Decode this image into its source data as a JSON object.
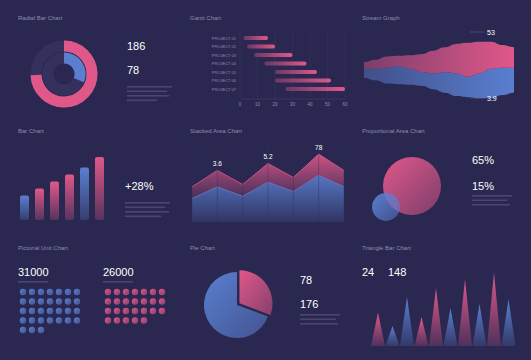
{
  "chart_data": [
    {
      "type": "radial_bar",
      "title": "Radial Bar Chart",
      "values": [
        186,
        78
      ],
      "colors": [
        "#e0588a",
        "#5a7fd0"
      ],
      "ylim": [
        0,
        250
      ],
      "data_labels": true,
      "tick_labels": false
    },
    {
      "type": "gantt",
      "title": "Gantt Chart",
      "orientation": "horizontal",
      "categories": [
        "PROJECT 01",
        "PROJECT 02",
        "PROJECT 03",
        "PROJECT 04",
        "PROJECT 05",
        "PROJECT 06",
        "PROJECT 07"
      ],
      "start": [
        2,
        4,
        8,
        14,
        20,
        20,
        26
      ],
      "end": [
        16,
        20,
        30,
        38,
        44,
        52,
        60
      ],
      "color": "#e0588a",
      "xlim": [
        0,
        60
      ],
      "xticks": [
        0,
        10,
        20,
        30,
        40,
        50,
        60
      ],
      "grid": true
    },
    {
      "type": "stream",
      "title": "Stream Graph",
      "series": [
        {
          "color": "#5a7fd0",
          "values": [
            8,
            10,
            14,
            16,
            14,
            12,
            14,
            18,
            20,
            18,
            22,
            26,
            24,
            22
          ]
        },
        {
          "color": "#e0588a",
          "values": [
            6,
            8,
            10,
            9,
            12,
            16,
            20,
            22,
            26,
            30,
            28,
            24,
            20,
            18
          ]
        }
      ],
      "ylim": [
        -30,
        30
      ],
      "annotations": [
        "53",
        "3.9"
      ],
      "tick_labels": false
    },
    {
      "type": "bar",
      "title": "Bar Chart",
      "categories": [
        null,
        null,
        null,
        null,
        null,
        null
      ],
      "values": [
        35,
        45,
        55,
        65,
        75,
        90
      ],
      "colors": [
        "#5a7fd0",
        "#e0588a",
        "#e0588a",
        "#e0588a",
        "#5a7fd0",
        "#e0588a"
      ],
      "ylim": [
        0,
        100
      ],
      "tick_labels": false,
      "annotations": [
        "+28%"
      ]
    },
    {
      "type": "area",
      "title": "Stacked Area Chart",
      "stacked": true,
      "categories": [
        null,
        null,
        null,
        null,
        null,
        null,
        null
      ],
      "series": [
        {
          "color": "#5a7fd0",
          "values": [
            20,
            30,
            22,
            34,
            26,
            40,
            30
          ]
        },
        {
          "color": "#e0588a",
          "values": [
            10,
            14,
            10,
            16,
            12,
            18,
            14
          ]
        }
      ],
      "ylim": [
        0,
        70
      ],
      "tick_labels": false,
      "annotations": [
        "3.6",
        "5.2",
        "78"
      ]
    },
    {
      "type": "proportional_area",
      "title": "Proportional Area Chart",
      "values": [
        65,
        15
      ],
      "value_labels": [
        "65%",
        "15%"
      ],
      "colors": [
        "#e0588a",
        "#5a7fd0"
      ],
      "ylim": [
        0,
        100
      ],
      "data_labels": true
    },
    {
      "type": "pictorial_unit",
      "title": "Pictorial Unit Chart",
      "values": [
        31000,
        26000
      ],
      "unit": 1000,
      "colors": [
        "#5a7fd0",
        "#e0588a"
      ],
      "data_labels": true
    },
    {
      "type": "pie",
      "title": "Pie Chart",
      "values": [
        78,
        176
      ],
      "colors": [
        "#e0588a",
        "#5a7fd0"
      ],
      "data_labels": true
    },
    {
      "type": "triangle_bar",
      "title": "Triangle Bar Chart",
      "categories": [
        null,
        null,
        null,
        null,
        null,
        null,
        null,
        null,
        null,
        null
      ],
      "values": [
        30,
        18,
        44,
        26,
        52,
        34,
        60,
        38,
        66,
        42
      ],
      "colors": [
        "#e0588a",
        "#5a7fd0",
        "#5a7fd0",
        "#e0588a",
        "#e0588a",
        "#5a7fd0",
        "#e0588a",
        "#5a7fd0",
        "#e0588a",
        "#5a7fd0"
      ],
      "ylim": [
        0,
        70
      ],
      "tick_labels": false,
      "annotations": [
        "24",
        "148"
      ]
    }
  ]
}
